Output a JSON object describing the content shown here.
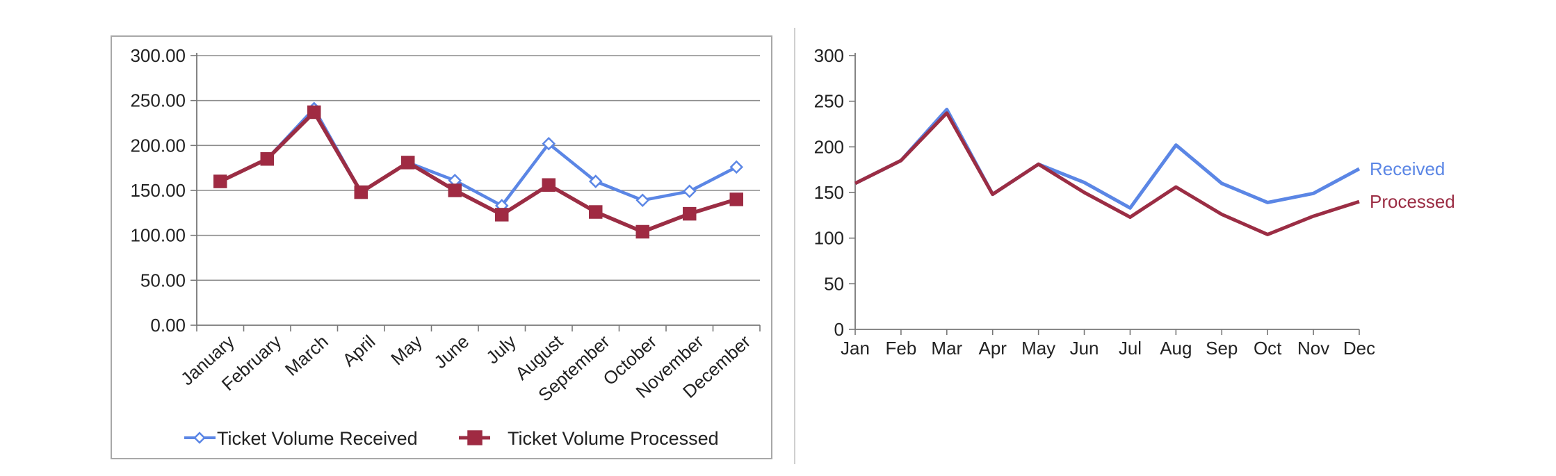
{
  "colors": {
    "received": "#5b86e5",
    "processed": "#9b2d44",
    "processed_marker": "#a02a42",
    "grid": "#8c8c8c",
    "axis": "#777777",
    "frame": "#a8a8a8",
    "divider": "#cfcfcf"
  },
  "chart_data": [
    {
      "type": "line",
      "title": "",
      "xlabel": "",
      "ylabel": "",
      "categories": [
        "January",
        "February",
        "March",
        "April",
        "May",
        "June",
        "July",
        "August",
        "September",
        "October",
        "November",
        "December"
      ],
      "ylim": [
        0,
        300
      ],
      "ytick_labels": [
        "0.00",
        "50.00",
        "100.00",
        "150.00",
        "200.00",
        "250.00",
        "300.00"
      ],
      "grid": true,
      "legend_position": "bottom",
      "markers": true,
      "series": [
        {
          "name": "Ticket Volume Received",
          "marker": "diamond",
          "values": [
            160,
            185,
            241,
            148,
            181,
            161,
            133,
            202,
            160,
            139,
            149,
            176
          ]
        },
        {
          "name": "Ticket Volume Processed",
          "marker": "square",
          "values": [
            160,
            185,
            237,
            148,
            181,
            150,
            123,
            156,
            126,
            104,
            124,
            140
          ]
        }
      ]
    },
    {
      "type": "line",
      "title": "",
      "xlabel": "",
      "ylabel": "",
      "categories": [
        "Jan",
        "Feb",
        "Mar",
        "Apr",
        "May",
        "Jun",
        "Jul",
        "Aug",
        "Sep",
        "Oct",
        "Nov",
        "Dec"
      ],
      "ylim": [
        0,
        300
      ],
      "ytick_labels": [
        "0",
        "50",
        "100",
        "150",
        "200",
        "250",
        "300"
      ],
      "grid": false,
      "legend_position": "end-of-line labels",
      "markers": false,
      "series": [
        {
          "name": "Received",
          "values": [
            160,
            185,
            241,
            148,
            181,
            161,
            133,
            202,
            160,
            139,
            149,
            176
          ]
        },
        {
          "name": "Processed",
          "values": [
            160,
            185,
            237,
            148,
            181,
            150,
            123,
            156,
            126,
            104,
            124,
            140
          ]
        }
      ]
    }
  ]
}
